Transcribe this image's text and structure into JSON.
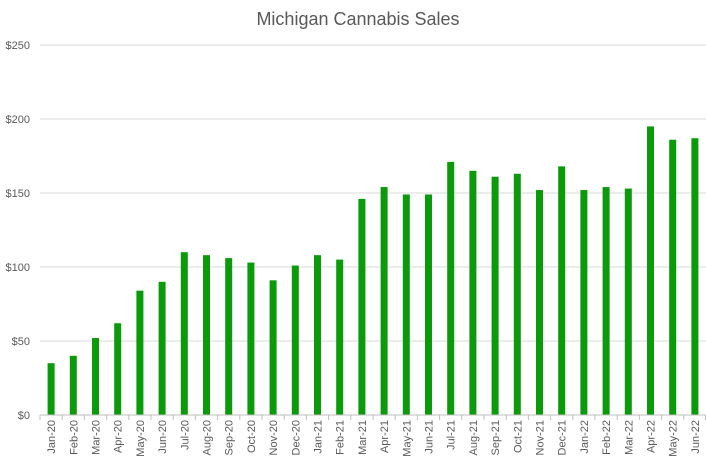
{
  "chart_data": {
    "type": "bar",
    "title": "Michigan Cannabis Sales",
    "xlabel": "",
    "ylabel": "",
    "ylim": [
      0,
      250
    ],
    "yticks": [
      0,
      50,
      100,
      150,
      200,
      250
    ],
    "ytick_labels": [
      "$0",
      "$50",
      "$100",
      "$150",
      "$200",
      "$250"
    ],
    "grid": true,
    "bar_color": "#0a9a0a",
    "categories": [
      "Jan-20",
      "Feb-20",
      "Mar-20",
      "Apr-20",
      "May-20",
      "Jun-20",
      "Jul-20",
      "Aug-20",
      "Sep-20",
      "Oct-20",
      "Nov-20",
      "Dec-20",
      "Jan-21",
      "Feb-21",
      "Mar-21",
      "Apr-21",
      "May-21",
      "Jun-21",
      "Jul-21",
      "Aug-21",
      "Sep-21",
      "Oct-21",
      "Nov-21",
      "Dec-21",
      "Jan-22",
      "Feb-22",
      "Mar-22",
      "Apr-22",
      "May-22",
      "Jun-22"
    ],
    "values": [
      35,
      40,
      52,
      62,
      84,
      90,
      110,
      108,
      106,
      103,
      91,
      101,
      108,
      105,
      146,
      154,
      149,
      149,
      171,
      165,
      161,
      163,
      152,
      168,
      152,
      154,
      153,
      195,
      186,
      187
    ]
  }
}
